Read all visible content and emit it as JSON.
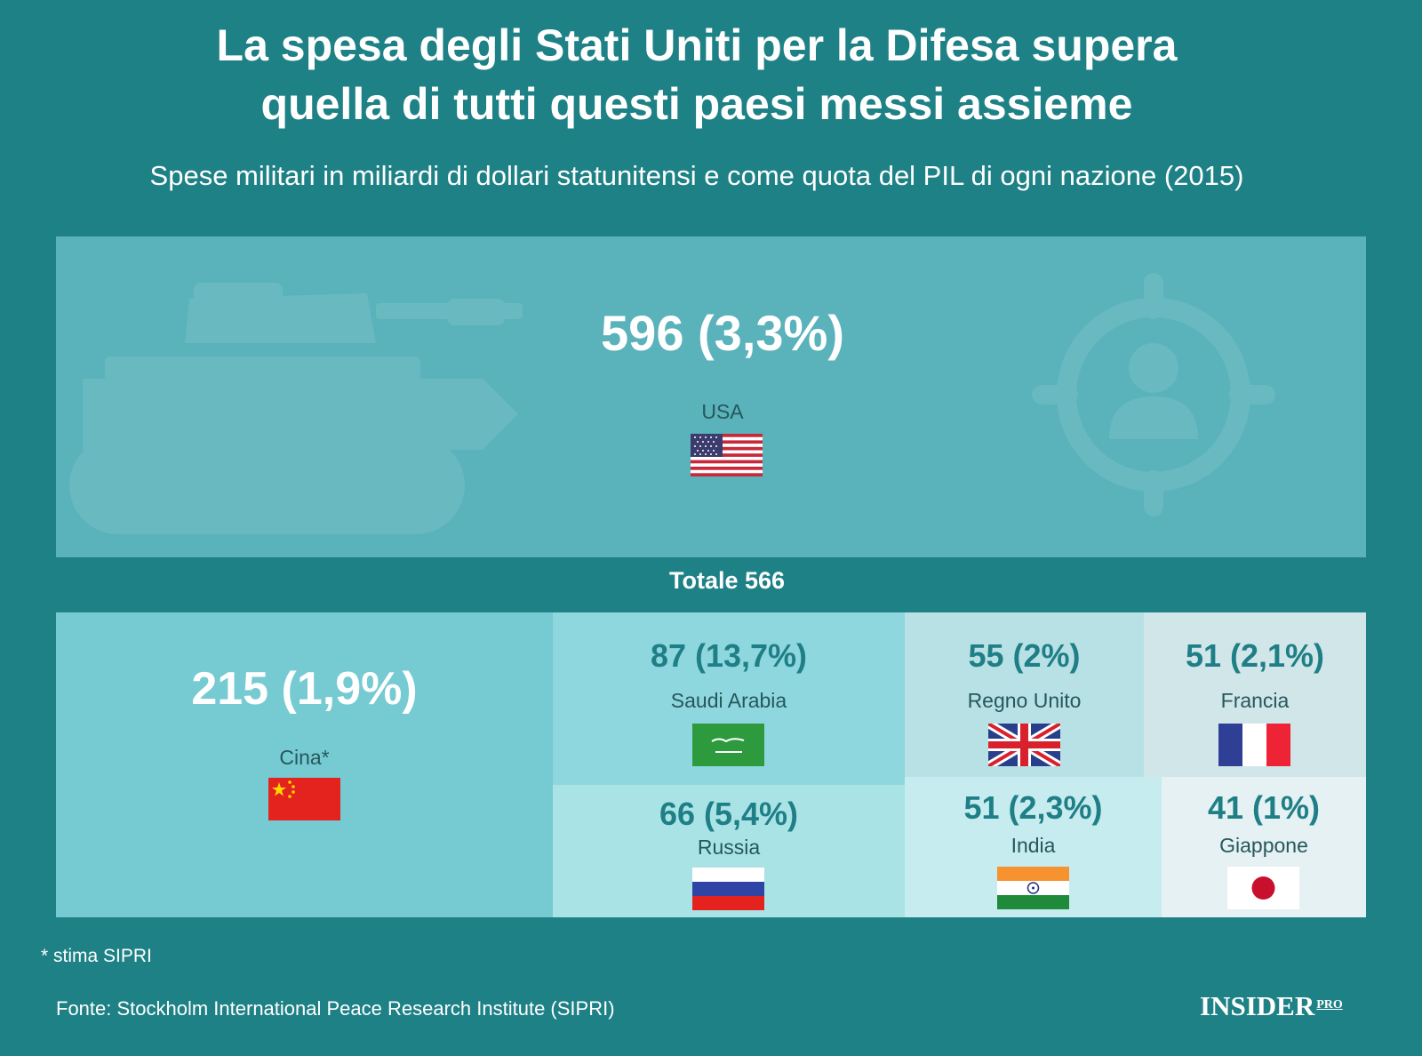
{
  "title_line1": "La spesa degli Stati Uniti per la Difesa supera",
  "title_line2": "quella di tutti questi paesi messi assieme",
  "subtitle": "Spese militari in miliardi di dollari statunitensi e come quota del PIL di ogni nazione (2015)",
  "usa": {
    "label": "596  (3,3%)",
    "name": "USA",
    "value": 596,
    "gdp_share": "3,3%",
    "flag": "us-flag-icon"
  },
  "total_label": "Totale 566",
  "footnote": "* stima SIPRI",
  "source": "Fonte: Stockholm International Peace Research Institute (SIPRI)",
  "logo": {
    "main": "INSIDER",
    "sub": "PRO"
  },
  "colors": {
    "background": "#1e8186",
    "usa_box": "#5ab2bb",
    "cina": "#76cad2",
    "saudi": "#8fd7de",
    "russia": "#aae3e6",
    "regno_unito": "#b8e1e5",
    "francia": "#d1e6e9",
    "india": "#c7ecef",
    "giappone": "#e5f1f3",
    "value_teal": "#1f7f86"
  },
  "chart_data": {
    "type": "treemap",
    "title": "La spesa degli Stati Uniti per la Difesa supera quella di tutti questi paesi messi assieme",
    "subtitle": "Spese militari in miliardi di dollari statunitensi e come quota del PIL di ogni nazione (2015)",
    "reference": {
      "country": "USA",
      "value": 596,
      "gdp_share_pct": 3.3
    },
    "total_others": 566,
    "items": [
      {
        "country": "Cina*",
        "label": "215 (1,9%)",
        "value": 215,
        "gdp_share_pct": 1.9,
        "flag": "cn-flag-icon"
      },
      {
        "country": "Saudi Arabia",
        "label": "87  (13,7%)",
        "value": 87,
        "gdp_share_pct": 13.7,
        "flag": "sa-flag-icon"
      },
      {
        "country": "Russia",
        "label": "66 (5,4%)",
        "value": 66,
        "gdp_share_pct": 5.4,
        "flag": "ru-flag-icon"
      },
      {
        "country": "Regno Unito",
        "label": "55  (2%)",
        "value": 55,
        "gdp_share_pct": 2,
        "flag": "uk-flag-icon"
      },
      {
        "country": "Francia",
        "label": "51 (2,1%)",
        "value": 51,
        "gdp_share_pct": 2.1,
        "flag": "fr-flag-icon"
      },
      {
        "country": "India",
        "label": "51  (2,3%)",
        "value": 51,
        "gdp_share_pct": 2.3,
        "flag": "in-flag-icon"
      },
      {
        "country": "Giappone",
        "label": "41 (1%)",
        "value": 41,
        "gdp_share_pct": 1,
        "flag": "jp-flag-icon"
      }
    ]
  }
}
